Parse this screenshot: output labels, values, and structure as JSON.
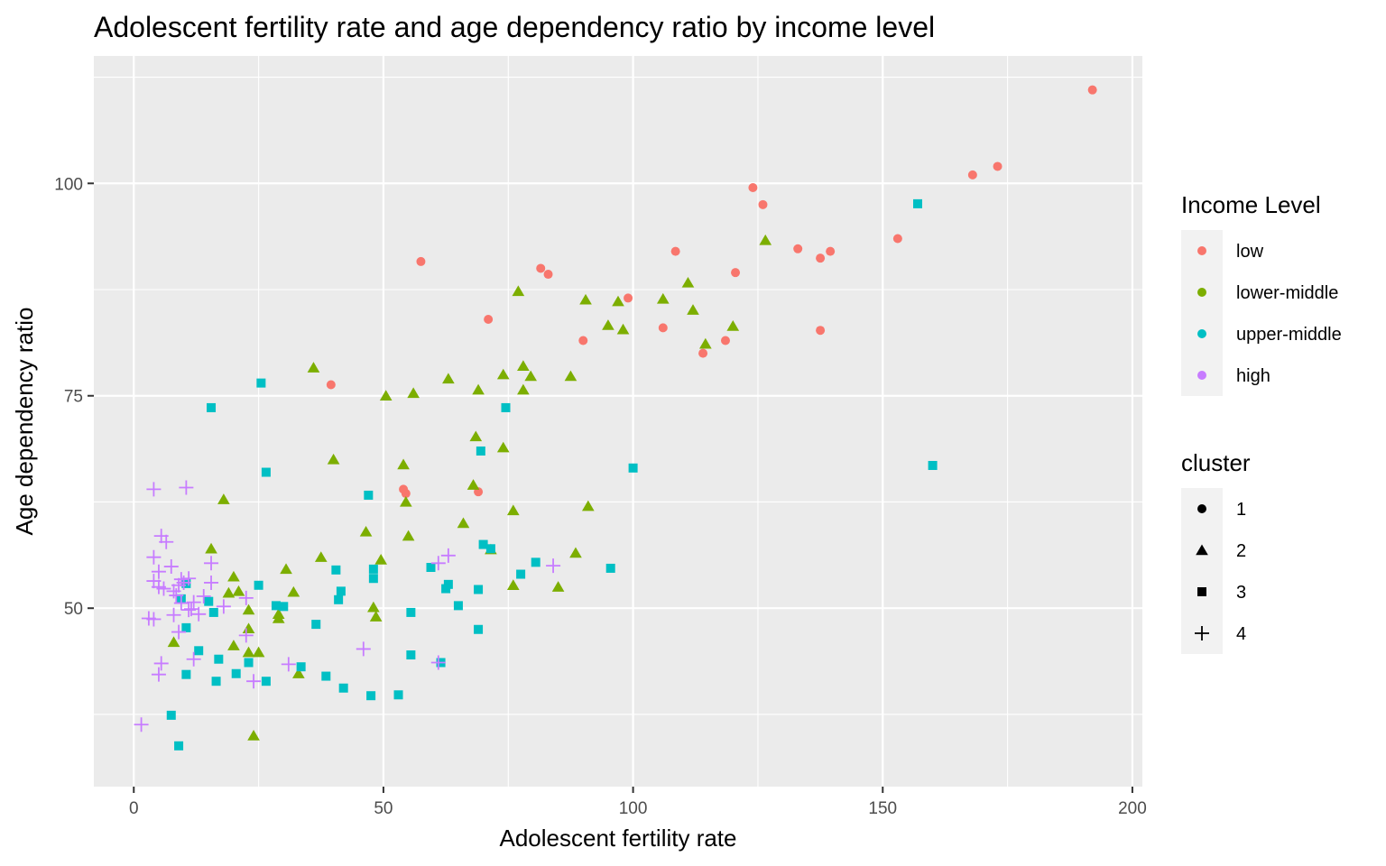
{
  "chart_data": {
    "type": "scatter",
    "title": "Adolescent fertility rate and age dependency ratio by income level",
    "xlabel": "Adolescent fertility rate",
    "ylabel": "Age dependency ratio",
    "xlim": [
      -8,
      202
    ],
    "ylim": [
      29,
      115
    ],
    "x_ticks": [
      0,
      50,
      100,
      150,
      200
    ],
    "y_ticks": [
      50,
      75,
      100
    ],
    "x_minor": [
      25,
      75,
      125,
      175
    ],
    "y_minor": [
      37.5,
      62.5,
      87.5,
      112.5
    ],
    "grid": true,
    "legends": {
      "income": {
        "title": "Income Level",
        "items": [
          {
            "label": "low",
            "color": "#F8766D"
          },
          {
            "label": "lower-middle",
            "color": "#7CAE00"
          },
          {
            "label": "upper-middle",
            "color": "#00BFC4"
          },
          {
            "label": "high",
            "color": "#C77CFF"
          }
        ]
      },
      "cluster": {
        "title": "cluster",
        "items": [
          {
            "label": "1",
            "shape": "circle"
          },
          {
            "label": "2",
            "shape": "triangle"
          },
          {
            "label": "3",
            "shape": "square"
          },
          {
            "label": "4",
            "shape": "plus"
          }
        ]
      }
    },
    "series": [
      {
        "income": "low",
        "cluster": "1",
        "color": "#F8766D",
        "shape": "circle",
        "points": [
          [
            192,
            111
          ],
          [
            173,
            102
          ],
          [
            168,
            101
          ],
          [
            124,
            99.5
          ],
          [
            126,
            97.5
          ],
          [
            108.5,
            92
          ],
          [
            133,
            92.3
          ],
          [
            139.5,
            92
          ],
          [
            137.5,
            91.2
          ],
          [
            153,
            93.5
          ],
          [
            120.5,
            89.5
          ],
          [
            57.5,
            90.8
          ],
          [
            81.5,
            90
          ],
          [
            83,
            89.3
          ],
          [
            99,
            86.5
          ],
          [
            90,
            81.5
          ],
          [
            71,
            84
          ],
          [
            106,
            83
          ],
          [
            137.5,
            82.7
          ],
          [
            118.5,
            81.5
          ],
          [
            114,
            80
          ],
          [
            39.5,
            76.3
          ],
          [
            54,
            64
          ],
          [
            54.5,
            63.5
          ],
          [
            69,
            63.7
          ]
        ]
      },
      {
        "income": "lower-middle",
        "cluster": "2",
        "color": "#7CAE00",
        "shape": "triangle",
        "points": [
          [
            126.5,
            93.3
          ],
          [
            77,
            87.3
          ],
          [
            111,
            88.3
          ],
          [
            90.5,
            86.3
          ],
          [
            97,
            86.1
          ],
          [
            106,
            86.4
          ],
          [
            95,
            83.3
          ],
          [
            98,
            82.8
          ],
          [
            112,
            85.1
          ],
          [
            120,
            83.2
          ],
          [
            114.5,
            81.1
          ],
          [
            36,
            78.3
          ],
          [
            78,
            78.5
          ],
          [
            74,
            77.5
          ],
          [
            79.5,
            77.3
          ],
          [
            87.5,
            77.3
          ],
          [
            63,
            77
          ],
          [
            69,
            75.7
          ],
          [
            78,
            75.7
          ],
          [
            50.5,
            75
          ],
          [
            56,
            75.3
          ],
          [
            68.5,
            70.2
          ],
          [
            74,
            68.9
          ],
          [
            40,
            67.5
          ],
          [
            54,
            66.9
          ],
          [
            18,
            62.8
          ],
          [
            68,
            64.5
          ],
          [
            54.5,
            62.5
          ],
          [
            91,
            62
          ],
          [
            76,
            61.5
          ],
          [
            66,
            60
          ],
          [
            46.5,
            59
          ],
          [
            55,
            58.5
          ],
          [
            15.5,
            57
          ],
          [
            71.5,
            56.9
          ],
          [
            88.5,
            56.5
          ],
          [
            37.5,
            56
          ],
          [
            49.5,
            55.7
          ],
          [
            30.5,
            54.6
          ],
          [
            20,
            53.7
          ],
          [
            19,
            51.8
          ],
          [
            21,
            52
          ],
          [
            32,
            51.9
          ],
          [
            76,
            52.7
          ],
          [
            85,
            52.5
          ],
          [
            48,
            50.1
          ],
          [
            23,
            49.8
          ],
          [
            29,
            49.3
          ],
          [
            48.5,
            49
          ],
          [
            29,
            48.8
          ],
          [
            23,
            47.6
          ],
          [
            8,
            46
          ],
          [
            20,
            45.6
          ],
          [
            23,
            44.8
          ],
          [
            25,
            44.8
          ],
          [
            33,
            42.3
          ],
          [
            24,
            35
          ]
        ]
      },
      {
        "income": "upper-middle",
        "cluster": "3",
        "color": "#00BFC4",
        "shape": "square",
        "points": [
          [
            157,
            97.6
          ],
          [
            25.5,
            76.5
          ],
          [
            15.5,
            73.6
          ],
          [
            74.5,
            73.6
          ],
          [
            100,
            66.5
          ],
          [
            160,
            66.8
          ],
          [
            69.5,
            68.5
          ],
          [
            26.5,
            66
          ],
          [
            47,
            63.3
          ],
          [
            70,
            57.5
          ],
          [
            71.5,
            57
          ],
          [
            59.5,
            54.8
          ],
          [
            80.5,
            55.4
          ],
          [
            95.5,
            54.7
          ],
          [
            77.5,
            54
          ],
          [
            48,
            54.6
          ],
          [
            40.5,
            54.5
          ],
          [
            48,
            53.5
          ],
          [
            63,
            52.8
          ],
          [
            62.5,
            52.3
          ],
          [
            69,
            52.2
          ],
          [
            41.5,
            52
          ],
          [
            25,
            52.7
          ],
          [
            10.5,
            52.9
          ],
          [
            9.5,
            51.1
          ],
          [
            15,
            50.8
          ],
          [
            41,
            51
          ],
          [
            28.5,
            50.3
          ],
          [
            30,
            50.2
          ],
          [
            16,
            49.5
          ],
          [
            55.5,
            49.5
          ],
          [
            65,
            50.3
          ],
          [
            69,
            47.5
          ],
          [
            10.5,
            47.7
          ],
          [
            13,
            45
          ],
          [
            36.5,
            48.1
          ],
          [
            55.5,
            44.5
          ],
          [
            17,
            44
          ],
          [
            61.5,
            43.6
          ],
          [
            23,
            43.6
          ],
          [
            33.5,
            43.1
          ],
          [
            10.5,
            42.2
          ],
          [
            20.5,
            42.3
          ],
          [
            38.5,
            42
          ],
          [
            16.5,
            41.4
          ],
          [
            26.5,
            41.4
          ],
          [
            42,
            40.6
          ],
          [
            47.5,
            39.7
          ],
          [
            53,
            39.8
          ],
          [
            7.5,
            37.4
          ],
          [
            9,
            33.8
          ]
        ]
      },
      {
        "income": "high",
        "cluster": "4",
        "color": "#C77CFF",
        "shape": "plus",
        "points": [
          [
            4,
            64
          ],
          [
            10.5,
            64.2
          ],
          [
            5.5,
            58.5
          ],
          [
            6.5,
            57.8
          ],
          [
            4,
            56
          ],
          [
            15.5,
            55.3
          ],
          [
            7.5,
            54.9
          ],
          [
            61,
            55.3
          ],
          [
            63,
            56.2
          ],
          [
            84,
            55
          ],
          [
            5,
            54.3
          ],
          [
            9.5,
            53.4
          ],
          [
            11,
            53.5
          ],
          [
            4,
            53.2
          ],
          [
            9,
            52.7
          ],
          [
            10,
            53
          ],
          [
            15.5,
            53
          ],
          [
            6,
            52.3
          ],
          [
            8,
            52
          ],
          [
            5,
            52.5
          ],
          [
            14,
            51.4
          ],
          [
            8.5,
            51.5
          ],
          [
            22.5,
            51.2
          ],
          [
            12,
            50.7
          ],
          [
            9.5,
            50.6
          ],
          [
            18,
            50.2
          ],
          [
            11.5,
            49.9
          ],
          [
            13,
            49.3
          ],
          [
            8,
            49.2
          ],
          [
            11,
            49.8
          ],
          [
            3,
            48.8
          ],
          [
            4,
            48.7
          ],
          [
            22.5,
            46.8
          ],
          [
            9,
            47.2
          ],
          [
            12,
            44
          ],
          [
            46,
            45.2
          ],
          [
            5.5,
            43.5
          ],
          [
            31,
            43.4
          ],
          [
            61,
            43.6
          ],
          [
            5,
            42.2
          ],
          [
            24,
            41.4
          ],
          [
            1.5,
            36.3
          ]
        ]
      }
    ]
  }
}
